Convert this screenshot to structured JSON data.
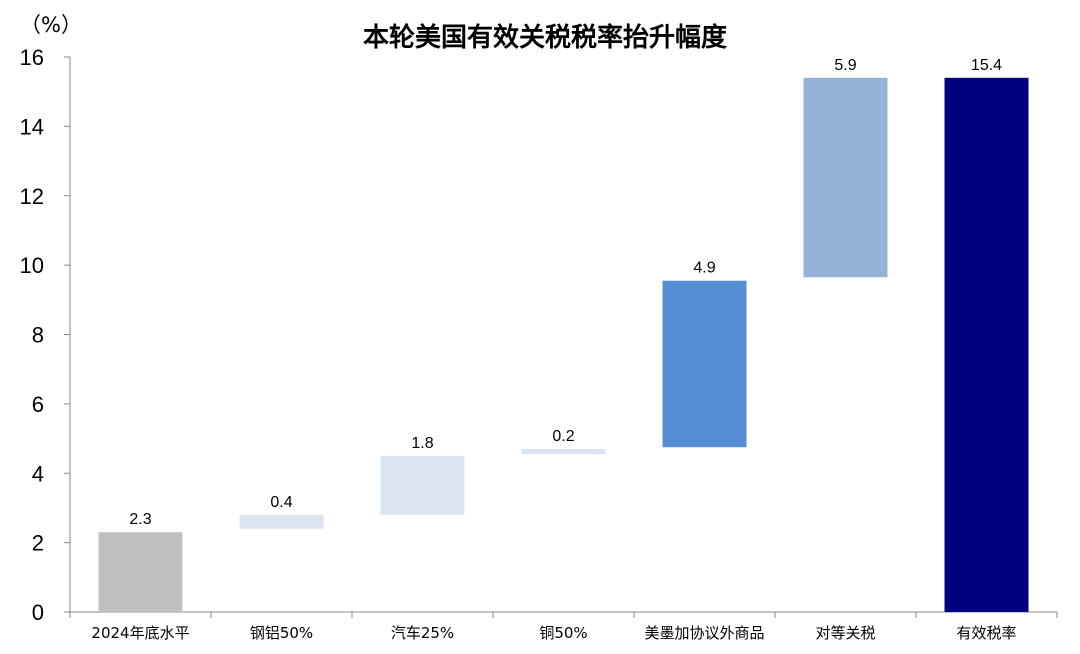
{
  "chart_data": {
    "type": "bar",
    "subtype": "waterfall",
    "title": "本轮美国有效关税税率抬升幅度",
    "ylabel": "（%）",
    "ylim": [
      0,
      16
    ],
    "yticks": [
      "0",
      "2",
      "4",
      "6",
      "8",
      "10",
      "12",
      "14",
      "16"
    ],
    "grid": false,
    "categories": [
      "2024年底水平",
      "钢铝50%",
      "汽车25%",
      "铜50%",
      "美墨加协议外商品",
      "对等关税",
      "有效税率"
    ],
    "values": [
      2.3,
      0.4,
      1.8,
      0.2,
      4.9,
      5.9,
      15.4
    ],
    "value_labels": [
      "2.3",
      "0.4",
      "1.8",
      "0.2",
      "4.9",
      "5.9",
      "15.4"
    ],
    "bar_ranges": [
      [
        0,
        2.3
      ],
      [
        2.4,
        2.8
      ],
      [
        2.8,
        4.5
      ],
      [
        4.55,
        4.7
      ],
      [
        4.75,
        9.55
      ],
      [
        9.65,
        15.4
      ],
      [
        0,
        15.4
      ]
    ],
    "colors": [
      "#bfbfbf",
      "#dae5f1",
      "#dae5f1",
      "#dae5f1",
      "#558ed5",
      "#95b3d7",
      "#000080"
    ]
  }
}
